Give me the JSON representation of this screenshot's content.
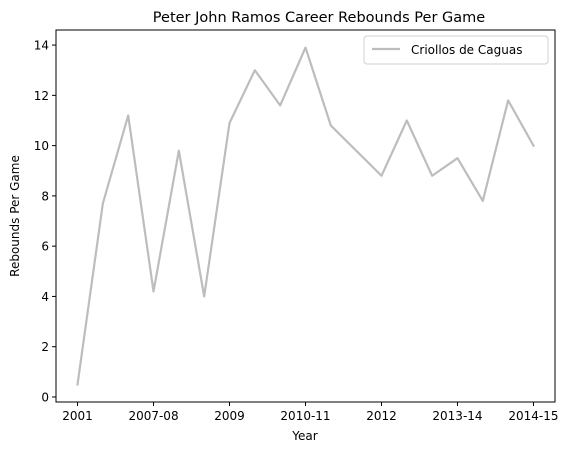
{
  "chart_data": {
    "type": "line",
    "title": "Peter John Ramos Career Rebounds Per Game",
    "xlabel": "Year",
    "ylabel": "Rebounds Per Game",
    "ylim": [
      0,
      14
    ],
    "yticks": [
      0,
      2,
      4,
      6,
      8,
      10,
      12,
      14
    ],
    "x_tick_labels": [
      "2001",
      "2007-08",
      "2009",
      "2010-11",
      "2012",
      "2013-14",
      "2014-15"
    ],
    "x_tick_positions": [
      0,
      3,
      6,
      9,
      12,
      15,
      18
    ],
    "grid": false,
    "legend_position": "top-right",
    "series": [
      {
        "name": "Criollos de Caguas",
        "color": "#bdbdbd",
        "x": [
          0,
          1,
          2,
          3,
          4,
          5,
          6,
          7,
          8,
          9,
          10,
          12,
          13,
          14,
          15,
          16,
          17,
          18
        ],
        "values": [
          0.5,
          7.7,
          11.2,
          4.2,
          9.8,
          4.0,
          10.9,
          13.0,
          11.6,
          13.9,
          10.8,
          8.8,
          11.0,
          8.8,
          9.5,
          7.8,
          11.8,
          10.0
        ]
      }
    ]
  }
}
